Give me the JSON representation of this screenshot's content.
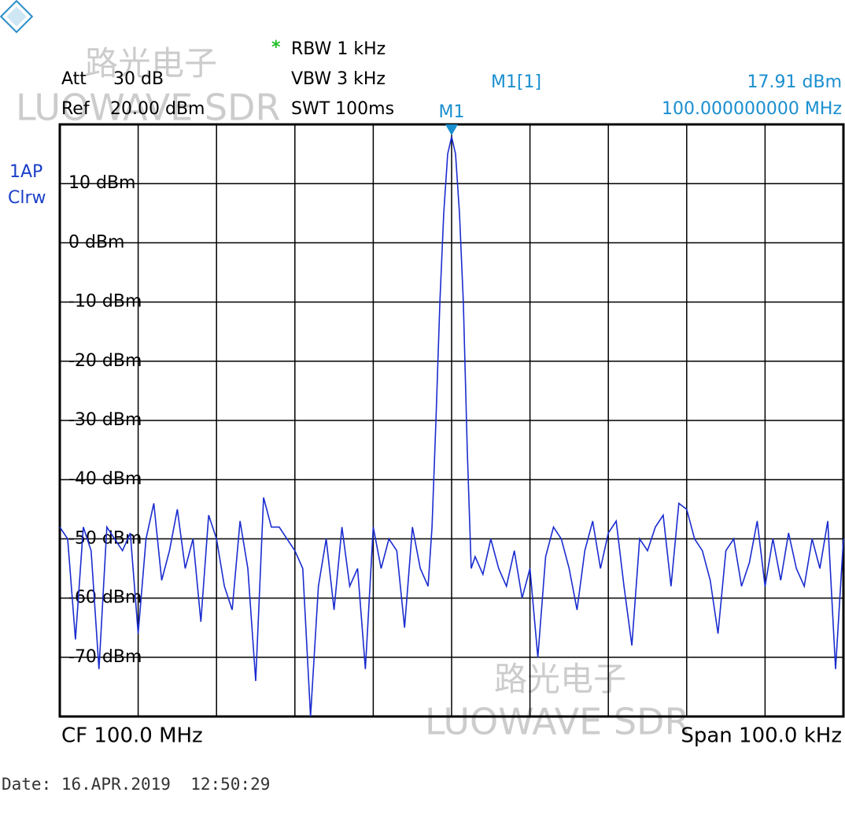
{
  "chart_data": {
    "type": "line",
    "header": {
      "att": "Att",
      "att_value": "30 dB",
      "ref": "Ref",
      "ref_value": "20.00 dBm",
      "star": "*",
      "rbw": "RBW 1 kHz",
      "vbw": "VBW 3 kHz",
      "swt": "SWT 100ms"
    },
    "trace_labels": [
      "1AP",
      "Clrw"
    ],
    "marker": {
      "label": "M1",
      "name": "M1[1]",
      "level": "17.91 dBm",
      "frequency": "100.000000000 MHz",
      "color": "#1a8fd0"
    },
    "footer": {
      "center": "CF 100.0 MHz",
      "span": "Span 100.0 kHz",
      "date": "Date: 16.APR.2019  12:50:29"
    },
    "watermark": [
      "路光电子",
      "LUOWAVE SDR"
    ],
    "x": [
      99.95,
      99.951,
      99.952,
      99.953,
      99.954,
      99.955,
      99.956,
      99.957,
      99.958,
      99.959,
      99.96,
      99.961,
      99.962,
      99.963,
      99.964,
      99.965,
      99.966,
      99.967,
      99.968,
      99.969,
      99.97,
      99.971,
      99.972,
      99.973,
      99.974,
      99.975,
      99.976,
      99.977,
      99.978,
      99.979,
      99.98,
      99.981,
      99.982,
      99.983,
      99.984,
      99.985,
      99.986,
      99.987,
      99.988,
      99.989,
      99.99,
      99.991,
      99.992,
      99.993,
      99.994,
      99.995,
      99.996,
      99.997,
      99.9975,
      99.998,
      99.9985,
      99.999,
      99.9995,
      100,
      100.0005,
      100.001,
      100.0015,
      100.002,
      100.0025,
      100.003,
      100.004,
      100.005,
      100.006,
      100.007,
      100.008,
      100.009,
      100.01,
      100.011,
      100.012,
      100.013,
      100.014,
      100.015,
      100.016,
      100.017,
      100.018,
      100.019,
      100.02,
      100.021,
      100.022,
      100.023,
      100.024,
      100.025,
      100.026,
      100.027,
      100.028,
      100.029,
      100.03,
      100.031,
      100.032,
      100.033,
      100.034,
      100.035,
      100.036,
      100.037,
      100.038,
      100.039,
      100.04,
      100.041,
      100.042,
      100.043,
      100.044,
      100.045,
      100.046,
      100.047,
      100.048,
      100.049,
      100.05
    ],
    "series": [
      {
        "name": "1AP",
        "color": "#1a2ccf",
        "values": [
          -48,
          -50,
          -67,
          -48,
          -52,
          -72,
          -48,
          -50,
          -52,
          -49,
          -66,
          -50,
          -44,
          -57,
          -52,
          -45,
          -55,
          -50,
          -64,
          -46,
          -50,
          -58,
          -62,
          -47,
          -55,
          -74,
          -43,
          -48,
          -48,
          -50,
          -52,
          -55,
          -80,
          -58,
          -50,
          -62,
          -48,
          -58,
          -55,
          -72,
          -48,
          -55,
          -50,
          -52,
          -65,
          -48,
          -55,
          -58,
          -48,
          -30,
          -10,
          5,
          15,
          17.91,
          15,
          5,
          -10,
          -35,
          -55,
          -53,
          -56,
          -50,
          -55,
          -58,
          -52,
          -60,
          -55,
          -70,
          -53,
          -48,
          -50,
          -55,
          -62,
          -52,
          -47,
          -55,
          -49,
          -47,
          -58,
          -68,
          -50,
          -52,
          -48,
          -46,
          -58,
          -44,
          -45,
          -50,
          -52,
          -57,
          -66,
          -52,
          -50,
          -58,
          -54,
          -47,
          -58,
          -50,
          -57,
          -49,
          -55,
          -58,
          -50,
          -55,
          -47,
          -72,
          -50
        ]
      }
    ],
    "xlim": [
      99.95,
      100.05
    ],
    "xticks": [
      99.95,
      99.96,
      99.97,
      99.98,
      99.99,
      100,
      100.01,
      100.02,
      100.03,
      100.04,
      100.05
    ],
    "ylim": [
      -80,
      20
    ],
    "yticks": [
      {
        "value": 10,
        "label": "10 dBm"
      },
      {
        "value": 0,
        "label": "0 dBm"
      },
      {
        "value": -10,
        "label": "-10 dBm"
      },
      {
        "value": -20,
        "label": "-20 dBm"
      },
      {
        "value": -30,
        "label": "-30 dBm"
      },
      {
        "value": -40,
        "label": "-40 dBm"
      },
      {
        "value": -50,
        "label": "-50 dBm"
      },
      {
        "value": -60,
        "label": "-60 dBm"
      },
      {
        "value": -70,
        "label": "-70 dBm"
      }
    ],
    "grid": true
  }
}
